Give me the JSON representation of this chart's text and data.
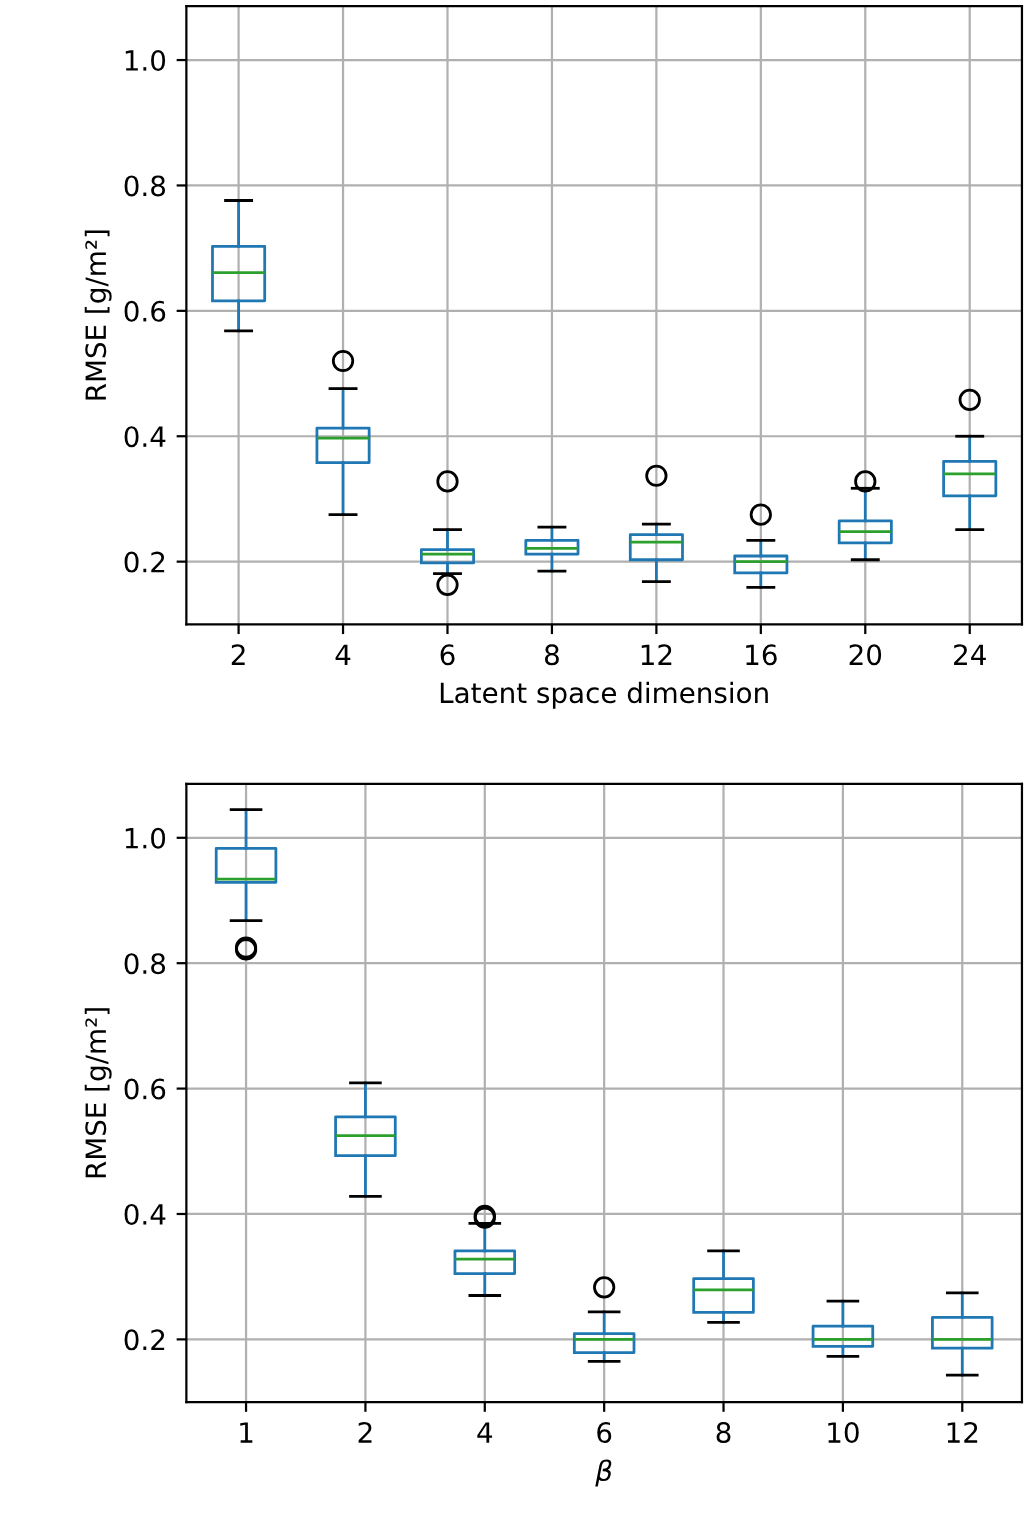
{
  "chart_data": [
    {
      "type": "box",
      "xlabel": "Latent space dimension",
      "ylabel": "RMSE [g/m²]",
      "categories": [
        "2",
        "4",
        "6",
        "8",
        "12",
        "16",
        "20",
        "24"
      ],
      "color": "#1f77b4",
      "ylim": [
        0.1,
        1.086
      ],
      "yticks": [
        0.2,
        0.4,
        0.6,
        0.8,
        {
          "value": 1.0,
          "label": "1.0"
        }
      ],
      "grid": true,
      "marker": "circle",
      "boxes": [
        {
          "low": 0.568,
          "q1": 0.616,
          "median": 0.661,
          "q3": 0.703,
          "high": 0.776
        },
        {
          "low": 0.275,
          "q1": 0.358,
          "median": 0.397,
          "q3": 0.413,
          "high": 0.476,
          "outliers": [
            0.52
          ]
        },
        {
          "low": 0.181,
          "q1": 0.198,
          "median": 0.212,
          "q3": 0.219,
          "high": 0.251,
          "outliers": [
            0.328,
            0.163
          ]
        },
        {
          "low": 0.185,
          "q1": 0.212,
          "median": 0.221,
          "q3": 0.234,
          "high": 0.255
        },
        {
          "low": 0.168,
          "q1": 0.203,
          "median": 0.231,
          "q3": 0.243,
          "high": 0.26,
          "outliers": [
            0.337
          ]
        },
        {
          "low": 0.159,
          "q1": 0.182,
          "median": 0.2,
          "q3": 0.209,
          "high": 0.234,
          "outliers": [
            0.275
          ]
        },
        {
          "low": 0.203,
          "q1": 0.23,
          "median": 0.248,
          "q3": 0.265,
          "high": 0.317,
          "outliers": [
            0.328
          ]
        },
        {
          "low": 0.251,
          "q1": 0.305,
          "median": 0.34,
          "q3": 0.36,
          "high": 0.4,
          "outliers": [
            0.458
          ]
        }
      ]
    },
    {
      "type": "box",
      "xlabel": "β",
      "ylabel": "RMSE [g/m²]",
      "categories": [
        "1",
        "2",
        "4",
        "6",
        "8",
        "10",
        "12"
      ],
      "color": "#1f77b4",
      "ylim": [
        0.1,
        1.086
      ],
      "yticks": [
        0.2,
        0.4,
        0.6,
        0.8,
        {
          "value": 1.0,
          "label": "1.0"
        }
      ],
      "grid": true,
      "marker": "circle",
      "boxes": [
        {
          "low": 0.868,
          "q1": 0.929,
          "median": 0.934,
          "q3": 0.983,
          "high": 1.045,
          "outliers": [
            0.822,
            0.825
          ]
        },
        {
          "low": 0.428,
          "q1": 0.493,
          "median": 0.525,
          "q3": 0.555,
          "high": 0.609
        },
        {
          "low": 0.27,
          "q1": 0.305,
          "median": 0.328,
          "q3": 0.341,
          "high": 0.385,
          "outliers": [
            0.397,
            0.394
          ]
        },
        {
          "low": 0.165,
          "q1": 0.179,
          "median": 0.2,
          "q3": 0.209,
          "high": 0.244,
          "outliers": [
            0.283
          ]
        },
        {
          "low": 0.227,
          "q1": 0.243,
          "median": 0.279,
          "q3": 0.297,
          "high": 0.341
        },
        {
          "low": 0.173,
          "q1": 0.189,
          "median": 0.2,
          "q3": 0.221,
          "high": 0.261
        },
        {
          "low": 0.143,
          "q1": 0.186,
          "median": 0.2,
          "q3": 0.235,
          "high": 0.274
        }
      ]
    }
  ]
}
